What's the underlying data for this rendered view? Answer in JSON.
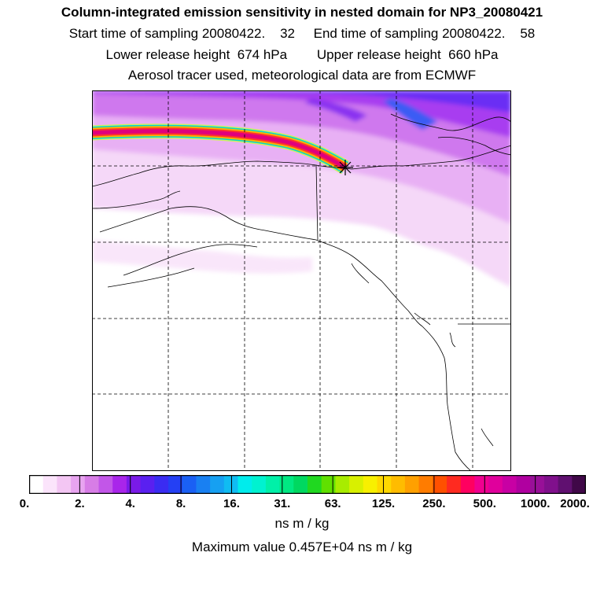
{
  "header": {
    "title": "Column-integrated emission sensitivity in nested domain for NP3_20080421",
    "line1": "Start time of sampling 20080422.    32     End time of sampling 20080422.    58",
    "line2": "Lower release height  674 hPa        Upper release height  660 hPa",
    "line3": "Aerosol tracer used, meteorological data are from ECMWF"
  },
  "colorbar": {
    "units": "ns m / kg",
    "tick_labels": [
      "0.",
      "2.",
      "4.",
      "8.",
      "16.",
      "31.",
      "63.",
      "125.",
      "250.",
      "500.",
      "1000.",
      "2000."
    ],
    "colors": [
      "#ffffff",
      "#fbe4fb",
      "#f3c6f3",
      "#e8a4f0",
      "#d77de6",
      "#c256e8",
      "#a925ea",
      "#7a1ae8",
      "#5a20f0",
      "#3a2cf2",
      "#2440f4",
      "#1a60f4",
      "#1980f2",
      "#16a0f2",
      "#10bcf2",
      "#00ecec",
      "#00f2d0",
      "#00f0a8",
      "#00e882",
      "#00d860",
      "#20d820",
      "#60e000",
      "#a8ec00",
      "#d8f000",
      "#f8f000",
      "#ffd800",
      "#ffbc00",
      "#ffa000",
      "#ff7c00",
      "#ff5000",
      "#ff2a20",
      "#ff0060",
      "#f00090",
      "#e0009c",
      "#c800a4",
      "#b000a0",
      "#981098",
      "#80108c",
      "#601070",
      "#400848"
    ]
  },
  "footer": {
    "max_value_text": "Maximum value  0.457E+04 ns m / kg"
  },
  "map": {
    "projection_grid": "dashed",
    "plume_colors": [
      "#ff0080",
      "#ff4000",
      "#ffc000",
      "#00e0c0",
      "#a0ff00"
    ],
    "release_marker": "cross"
  }
}
